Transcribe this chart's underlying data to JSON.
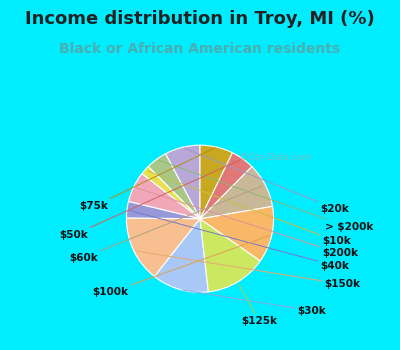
{
  "title": "Income distribution in Troy, MI (%)",
  "subtitle": "Black or African American residents",
  "watermark": "©City-Data.com",
  "background_outer": "#00ecff",
  "background_inner_color": "#e0f2e9",
  "title_color": "#222222",
  "subtitle_color": "#4aafb0",
  "labels": [
    "$20k",
    "> $200k",
    "$10k",
    "$200k",
    "$40k",
    "$150k",
    "$30k",
    "$125k",
    "$100k",
    "$60k",
    "$50k",
    "$75k"
  ],
  "sizes": [
    7.5,
    4.5,
    2.0,
    6.5,
    3.5,
    14.0,
    12.0,
    13.0,
    12.0,
    9.5,
    5.0,
    7.0
  ],
  "colors": [
    "#b8a8d8",
    "#a8c88a",
    "#e8e050",
    "#f0a8b8",
    "#9898d8",
    "#f8c090",
    "#a8c8f8",
    "#cce860",
    "#f8b868",
    "#c8b898",
    "#e07878",
    "#c8a820"
  ],
  "line_colors": [
    "#9898c8",
    "#88b870",
    "#c8c040",
    "#e09098",
    "#7878c8",
    "#e8a870",
    "#88a8e0",
    "#aad040",
    "#e0a050",
    "#b0a080",
    "#d06060",
    "#b09018"
  ],
  "startangle": 90,
  "title_fontsize": 13,
  "subtitle_fontsize": 10,
  "label_fontsize": 7.5
}
